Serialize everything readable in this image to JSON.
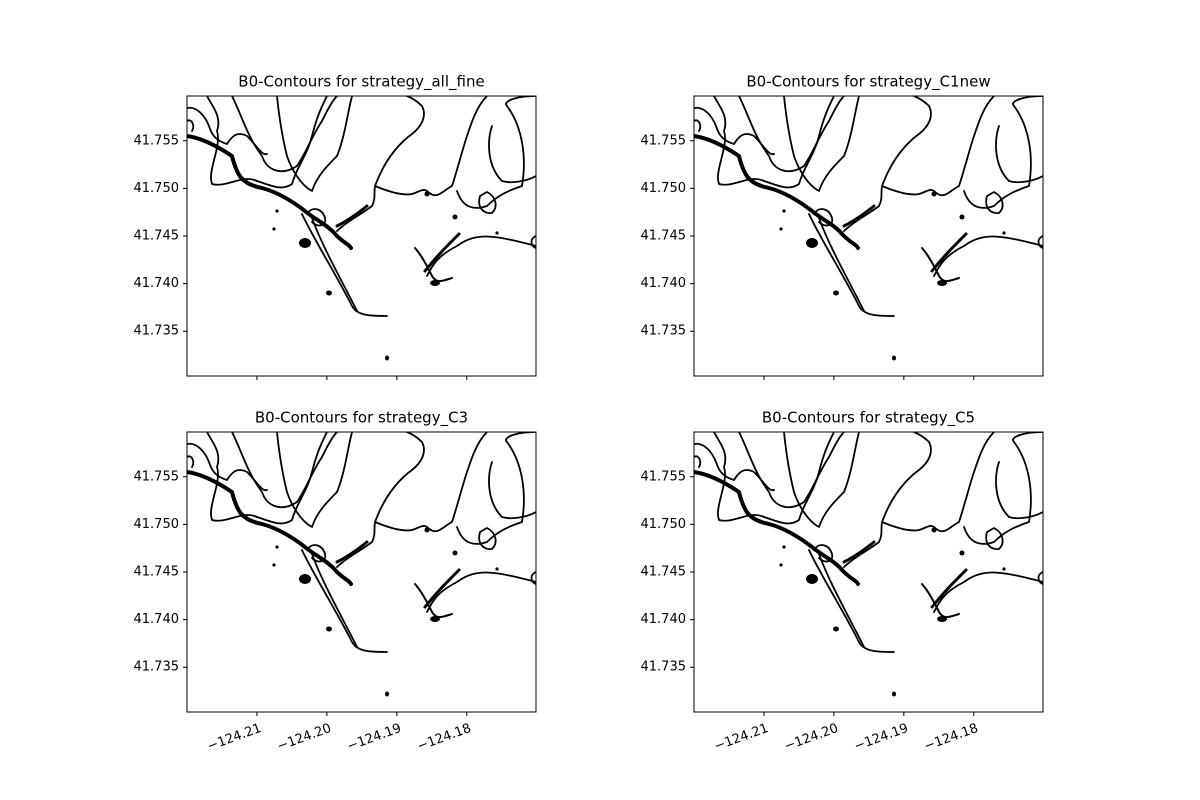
{
  "chart_data": [
    {
      "type": "contour",
      "title": "B0-Contours for  strategy_all_fine",
      "xlim": [
        -124.22,
        -124.1701
      ],
      "ylim": [
        41.7303,
        41.7597
      ],
      "xticks": [
        -124.21,
        -124.2,
        -124.19,
        -124.18
      ],
      "yticks": [
        41.735,
        {
          "value": 41.74,
          "label": "41.740"
        },
        41.745,
        {
          "value": 41.75,
          "label": "41.750"
        },
        41.755
      ],
      "color": "#000000"
    },
    {
      "type": "contour",
      "title": "B0-Contours for  strategy_C1new",
      "xlim": [
        -124.22,
        -124.1701
      ],
      "ylim": [
        41.7303,
        41.7597
      ],
      "xticks": [
        -124.21,
        -124.2,
        -124.19,
        -124.18
      ],
      "yticks": [
        41.735,
        {
          "value": 41.74,
          "label": "41.740"
        },
        41.745,
        {
          "value": 41.75,
          "label": "41.750"
        },
        41.755
      ],
      "color": "#000000"
    },
    {
      "type": "contour",
      "title": "B0-Contours for  strategy_C3",
      "xlim": [
        -124.22,
        -124.1701
      ],
      "ylim": [
        41.7303,
        41.7597
      ],
      "xticks": [
        {
          "value": -124.21,
          "label": "−124.21"
        },
        {
          "value": -124.2,
          "label": "−124.20"
        },
        {
          "value": -124.19,
          "label": "−124.19"
        },
        {
          "value": -124.18,
          "label": "−124.18"
        }
      ],
      "yticks": [
        41.735,
        {
          "value": 41.74,
          "label": "41.740"
        },
        41.745,
        {
          "value": 41.75,
          "label": "41.750"
        },
        41.755
      ],
      "color": "#000000"
    },
    {
      "type": "contour",
      "title": "B0-Contours for  strategy_C5",
      "xlim": [
        -124.22,
        -124.1701
      ],
      "ylim": [
        41.7303,
        41.7597
      ],
      "xticks": [
        {
          "value": -124.21,
          "label": "−124.21"
        },
        {
          "value": -124.2,
          "label": "−124.20"
        },
        {
          "value": -124.19,
          "label": "−124.19"
        },
        {
          "value": -124.18,
          "label": "−124.18"
        }
      ],
      "yticks": [
        41.735,
        {
          "value": 41.74,
          "label": "41.740"
        },
        41.745,
        {
          "value": 41.75,
          "label": "41.750"
        },
        41.755
      ],
      "color": "#000000"
    }
  ]
}
